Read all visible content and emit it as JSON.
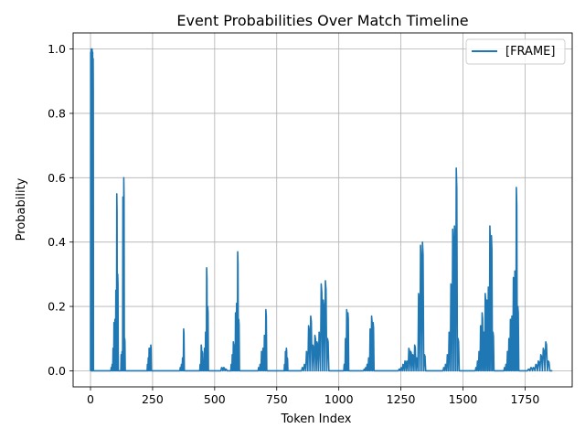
{
  "chart_data": {
    "type": "line",
    "title": "Event Probabilities Over Match Timeline",
    "xlabel": "Token Index",
    "ylabel": "Probability",
    "xlim": [
      -70,
      1940
    ],
    "ylim": [
      -0.05,
      1.05
    ],
    "xticks": [
      0,
      250,
      500,
      750,
      1000,
      1250,
      1500,
      1750
    ],
    "yticks": [
      0.0,
      0.2,
      0.4,
      0.6,
      0.8,
      1.0
    ],
    "grid": true,
    "legend_position": "top-right",
    "color": "#1f77b4",
    "series": [
      {
        "name": "[FRAME]",
        "bursts": [
          {
            "start": 0,
            "end": 12,
            "peaks": [
              0.99,
              1.0,
              0.98,
              1.0,
              0.99,
              0.97
            ]
          },
          {
            "start": 82,
            "end": 112,
            "peaks": [
              0.01,
              0.02,
              0.07,
              0.15,
              0.16,
              0.25,
              0.55,
              0.3
            ]
          },
          {
            "start": 122,
            "end": 140,
            "peaks": [
              0.05,
              0.06,
              0.54,
              0.6,
              0.1
            ]
          },
          {
            "start": 228,
            "end": 245,
            "peaks": [
              0.02,
              0.04,
              0.07,
              0.07,
              0.08
            ]
          },
          {
            "start": 360,
            "end": 378,
            "peaks": [
              0.01,
              0.02,
              0.04,
              0.13
            ]
          },
          {
            "start": 440,
            "end": 475,
            "peaks": [
              0.02,
              0.08,
              0.06,
              0.03,
              0.07,
              0.12,
              0.32,
              0.2
            ]
          },
          {
            "start": 525,
            "end": 550,
            "peaks": [
              0.01,
              0.01,
              0.005
            ]
          },
          {
            "start": 565,
            "end": 600,
            "peaks": [
              0.02,
              0.05,
              0.09,
              0.08,
              0.18,
              0.21,
              0.37,
              0.16
            ]
          },
          {
            "start": 675,
            "end": 710,
            "peaks": [
              0.01,
              0.02,
              0.06,
              0.07,
              0.11,
              0.19
            ]
          },
          {
            "start": 780,
            "end": 795,
            "peaks": [
              0.02,
              0.06,
              0.07,
              0.04
            ]
          },
          {
            "start": 850,
            "end": 960,
            "peaks": [
              0.01,
              0.02,
              0.06,
              0.14,
              0.17,
              0.08,
              0.11,
              0.09,
              0.12,
              0.27,
              0.22,
              0.28,
              0.1
            ]
          },
          {
            "start": 1020,
            "end": 1040,
            "peaks": [
              0.02,
              0.1,
              0.19,
              0.18
            ]
          },
          {
            "start": 1100,
            "end": 1142,
            "peaks": [
              0.005,
              0.01,
              0.02,
              0.04,
              0.13,
              0.17,
              0.15
            ]
          },
          {
            "start": 1240,
            "end": 1350,
            "peaks": [
              0.005,
              0.01,
              0.02,
              0.03,
              0.03,
              0.07,
              0.06,
              0.05,
              0.08,
              0.04,
              0.24,
              0.39,
              0.4,
              0.05
            ]
          },
          {
            "start": 1420,
            "end": 1485,
            "peaks": [
              0.01,
              0.02,
              0.05,
              0.12,
              0.27,
              0.44,
              0.45,
              0.63,
              0.1
            ]
          },
          {
            "start": 1550,
            "end": 1625,
            "peaks": [
              0.01,
              0.03,
              0.06,
              0.14,
              0.18,
              0.12,
              0.24,
              0.22,
              0.26,
              0.45,
              0.42,
              0.12
            ]
          },
          {
            "start": 1665,
            "end": 1725,
            "peaks": [
              0.01,
              0.02,
              0.06,
              0.1,
              0.16,
              0.17,
              0.29,
              0.31,
              0.57,
              0.2
            ]
          },
          {
            "start": 1760,
            "end": 1850,
            "peaks": [
              0.005,
              0.01,
              0.01,
              0.02,
              0.03,
              0.05,
              0.07,
              0.09,
              0.03
            ]
          }
        ],
        "end_index": 1860
      }
    ]
  }
}
